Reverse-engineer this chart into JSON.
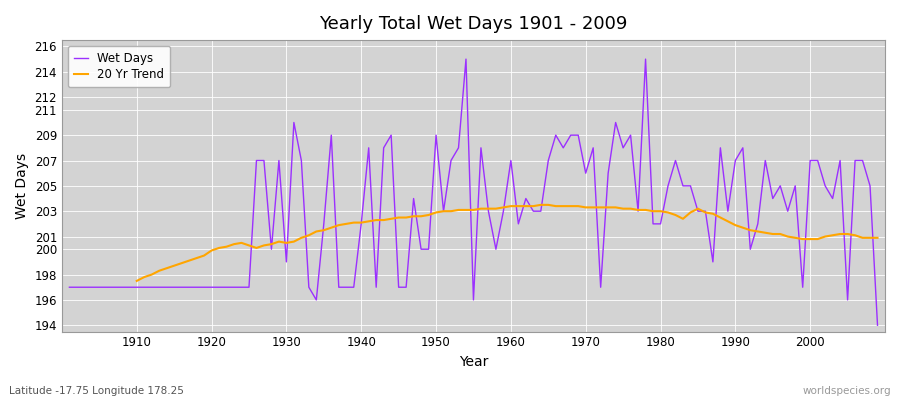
{
  "title": "Yearly Total Wet Days 1901 - 2009",
  "xlabel": "Year",
  "ylabel": "Wet Days",
  "lat_lon_label": "Latitude -17.75 Longitude 178.25",
  "watermark": "worldspecies.org",
  "wet_days_color": "#9B30FF",
  "trend_color": "#FFA500",
  "background_color": "#FFFFFF",
  "plot_bg_color": "#D3D3D3",
  "ylim": [
    193.5,
    216.5
  ],
  "yticks": [
    194,
    196,
    198,
    200,
    201,
    203,
    205,
    207,
    209,
    211,
    212,
    214,
    216
  ],
  "xticks": [
    1910,
    1920,
    1930,
    1940,
    1950,
    1960,
    1970,
    1980,
    1990,
    2000
  ],
  "xlim": [
    1900,
    2010
  ],
  "years": [
    1901,
    1902,
    1903,
    1904,
    1905,
    1906,
    1907,
    1908,
    1909,
    1910,
    1911,
    1912,
    1913,
    1914,
    1915,
    1916,
    1917,
    1918,
    1919,
    1920,
    1921,
    1922,
    1923,
    1924,
    1925,
    1926,
    1927,
    1928,
    1929,
    1930,
    1931,
    1932,
    1933,
    1934,
    1935,
    1936,
    1937,
    1938,
    1939,
    1940,
    1941,
    1942,
    1943,
    1944,
    1945,
    1946,
    1947,
    1948,
    1949,
    1950,
    1951,
    1952,
    1953,
    1954,
    1955,
    1956,
    1957,
    1958,
    1959,
    1960,
    1961,
    1962,
    1963,
    1964,
    1965,
    1966,
    1967,
    1968,
    1969,
    1970,
    1971,
    1972,
    1973,
    1974,
    1975,
    1976,
    1977,
    1978,
    1979,
    1980,
    1981,
    1982,
    1983,
    1984,
    1985,
    1986,
    1987,
    1988,
    1989,
    1990,
    1991,
    1992,
    1993,
    1994,
    1995,
    1996,
    1997,
    1998,
    1999,
    2000,
    2001,
    2002,
    2003,
    2004,
    2005,
    2006,
    2007,
    2008,
    2009
  ],
  "wet_days": [
    197,
    197,
    197,
    197,
    197,
    197,
    197,
    197,
    197,
    197,
    197,
    197,
    197,
    197,
    197,
    197,
    197,
    197,
    197,
    197,
    197,
    197,
    197,
    197,
    197,
    207,
    207,
    200,
    207,
    199,
    210,
    207,
    197,
    196,
    202,
    209,
    197,
    197,
    197,
    202,
    208,
    197,
    208,
    209,
    197,
    197,
    204,
    200,
    200,
    209,
    203,
    207,
    208,
    215,
    196,
    208,
    203,
    200,
    203,
    207,
    202,
    204,
    203,
    203,
    207,
    209,
    208,
    209,
    209,
    206,
    208,
    197,
    206,
    210,
    208,
    209,
    203,
    215,
    202,
    202,
    205,
    207,
    205,
    205,
    203,
    203,
    199,
    208,
    203,
    207,
    208,
    200,
    202,
    207,
    204,
    205,
    203,
    205,
    197,
    207,
    207,
    205,
    204,
    207,
    196,
    207,
    207,
    205,
    194
  ],
  "trend_years": [
    1910,
    1911,
    1912,
    1913,
    1914,
    1915,
    1916,
    1917,
    1918,
    1919,
    1920,
    1921,
    1922,
    1923,
    1924,
    1925,
    1926,
    1927,
    1928,
    1929,
    1930,
    1931,
    1932,
    1933,
    1934,
    1935,
    1936,
    1937,
    1938,
    1939,
    1940,
    1941,
    1942,
    1943,
    1944,
    1945,
    1946,
    1947,
    1948,
    1949,
    1950,
    1951,
    1952,
    1953,
    1954,
    1955,
    1956,
    1957,
    1958,
    1959,
    1960,
    1961,
    1962,
    1963,
    1964,
    1965,
    1966,
    1967,
    1968,
    1969,
    1970,
    1971,
    1972,
    1973,
    1974,
    1975,
    1976,
    1977,
    1978,
    1979,
    1980,
    1981,
    1982,
    1983,
    1984,
    1985,
    1986,
    1987,
    1988,
    1989,
    1990,
    1991,
    1992,
    1993,
    1994,
    1995,
    1996,
    1997,
    1998,
    1999,
    2000,
    2001,
    2002,
    2003,
    2004,
    2005,
    2006,
    2007,
    2008,
    2009
  ],
  "trend_values": [
    197.5,
    197.8,
    198.0,
    198.3,
    198.5,
    198.7,
    198.9,
    199.1,
    199.3,
    199.5,
    199.9,
    200.1,
    200.2,
    200.4,
    200.5,
    200.3,
    200.1,
    200.3,
    200.4,
    200.6,
    200.5,
    200.6,
    200.9,
    201.1,
    201.4,
    201.5,
    201.7,
    201.9,
    202.0,
    202.1,
    202.1,
    202.2,
    202.3,
    202.3,
    202.4,
    202.5,
    202.5,
    202.6,
    202.6,
    202.7,
    202.9,
    203.0,
    203.0,
    203.1,
    203.1,
    203.1,
    203.2,
    203.2,
    203.2,
    203.3,
    203.4,
    203.4,
    203.4,
    203.4,
    203.5,
    203.5,
    203.4,
    203.4,
    203.4,
    203.4,
    203.3,
    203.3,
    203.3,
    203.3,
    203.3,
    203.2,
    203.2,
    203.1,
    203.1,
    203.0,
    203.0,
    202.9,
    202.7,
    202.4,
    202.9,
    203.2,
    202.9,
    202.8,
    202.5,
    202.2,
    201.9,
    201.7,
    201.5,
    201.4,
    201.3,
    201.2,
    201.2,
    201.0,
    200.9,
    200.8,
    200.8,
    200.8,
    201.0,
    201.1,
    201.2,
    201.2,
    201.1,
    200.9,
    200.9,
    200.9
  ]
}
